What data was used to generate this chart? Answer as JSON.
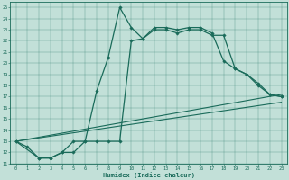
{
  "xlabel": "Humidex (Indice chaleur)",
  "bg_color": "#c2e0d8",
  "line_color": "#1a6b5a",
  "xlim": [
    -0.5,
    23.5
  ],
  "ylim": [
    11,
    25.5
  ],
  "xticks": [
    0,
    1,
    2,
    3,
    4,
    5,
    6,
    7,
    8,
    9,
    10,
    11,
    12,
    13,
    14,
    15,
    16,
    17,
    18,
    19,
    20,
    21,
    22,
    23
  ],
  "yticks": [
    11,
    12,
    13,
    14,
    15,
    16,
    17,
    18,
    19,
    20,
    21,
    22,
    23,
    24,
    25
  ],
  "line1_x": [
    0,
    1,
    2,
    3,
    4,
    5,
    6,
    7,
    8,
    9,
    10,
    11,
    12,
    13,
    14,
    15,
    16,
    17,
    18,
    19,
    20,
    21,
    22,
    23
  ],
  "line1_y": [
    13,
    12.5,
    11.5,
    11.5,
    12,
    12,
    13,
    17.5,
    20.5,
    25,
    23.2,
    22.2,
    23.0,
    23.0,
    22.7,
    23.0,
    23.0,
    22.5,
    22.5,
    19.5,
    19.0,
    18.0,
    17.2,
    17.0
  ],
  "line2_x": [
    0,
    2,
    3,
    4,
    5,
    6,
    7,
    8,
    9,
    10,
    11,
    12,
    13,
    14,
    15,
    16,
    17,
    18,
    19,
    20,
    21,
    22,
    23
  ],
  "line2_y": [
    13,
    11.5,
    11.5,
    12,
    13,
    13,
    13,
    13,
    13,
    22,
    22.2,
    23.2,
    23.2,
    23.0,
    23.2,
    23.2,
    22.7,
    20.2,
    19.5,
    19.0,
    18.2,
    17.2,
    17.0
  ],
  "line3_x": [
    0,
    23
  ],
  "line3_y": [
    13,
    17.2
  ],
  "line4_x": [
    0,
    23
  ],
  "line4_y": [
    13,
    16.5
  ]
}
